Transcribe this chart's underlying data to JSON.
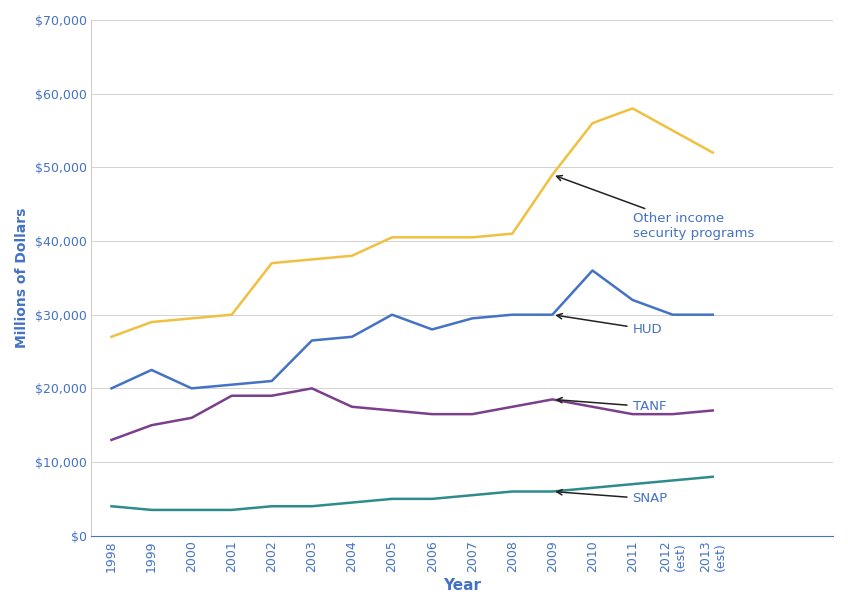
{
  "years": [
    "1998",
    "1999",
    "2000",
    "2001",
    "2002",
    "2003",
    "2004",
    "2005",
    "2006",
    "2007",
    "2008",
    "2009",
    "2010",
    "2011",
    "2012\n(est)",
    "2013\n(est)"
  ],
  "other_income": [
    27000,
    29000,
    29500,
    30000,
    37000,
    37500,
    38000,
    40500,
    40500,
    40500,
    41000,
    49000,
    56000,
    58000,
    55000,
    52000
  ],
  "hud": [
    20000,
    22500,
    20000,
    20500,
    21000,
    26500,
    27000,
    30000,
    28000,
    29500,
    30000,
    30000,
    36000,
    32000,
    30000,
    30000
  ],
  "tanf": [
    13000,
    15000,
    16000,
    19000,
    19000,
    20000,
    17500,
    17000,
    16500,
    16500,
    17500,
    18500,
    17500,
    16500,
    16500,
    17000
  ],
  "snap": [
    4000,
    3500,
    3500,
    3500,
    4000,
    4000,
    4500,
    5000,
    5000,
    5500,
    6000,
    6000,
    6500,
    7000,
    7500,
    8000
  ],
  "colors": {
    "other_income": "#f0c040",
    "hud": "#4472c4",
    "tanf": "#7b3f8c",
    "snap": "#2e8b8b"
  },
  "ylabel": "Millions of Dollars",
  "xlabel": "Year",
  "ylim": [
    0,
    70000
  ],
  "yticks": [
    0,
    10000,
    20000,
    30000,
    40000,
    50000,
    60000,
    70000
  ],
  "background_color": "#ffffff",
  "label_color": "#4472c4",
  "ann_color": "#222222",
  "ann_fontsize": 9.5,
  "linewidth": 1.8
}
